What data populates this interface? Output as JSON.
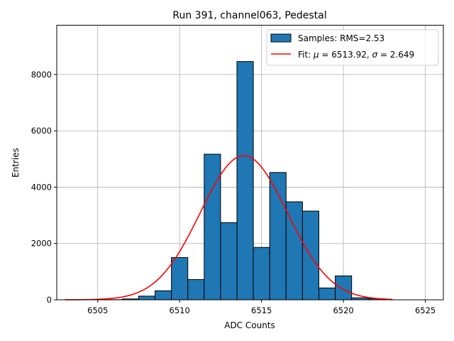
{
  "chart_data": {
    "type": "bar",
    "title": "Run 391, channel063, Pedestal",
    "xlabel": "ADC Counts",
    "ylabel": "Entries",
    "xlim": [
      6502.5,
      6526.1
    ],
    "ylim": [
      0,
      9750
    ],
    "xticks": [
      6505,
      6510,
      6515,
      6520,
      6525
    ],
    "yticks": [
      0,
      2000,
      4000,
      6000,
      8000
    ],
    "grid": true,
    "legend_position": "top-right",
    "series": [
      {
        "name": "Samples: RMS=2.53",
        "kind": "histogram",
        "color": "#1f77b4",
        "edgecolor": "#000000",
        "bin_width": 1,
        "bins": [
          {
            "x": 6506,
            "value": 5
          },
          {
            "x": 6507,
            "value": 30
          },
          {
            "x": 6508,
            "value": 130
          },
          {
            "x": 6509,
            "value": 320
          },
          {
            "x": 6510,
            "value": 1500
          },
          {
            "x": 6511,
            "value": 720
          },
          {
            "x": 6512,
            "value": 5170
          },
          {
            "x": 6513,
            "value": 2740
          },
          {
            "x": 6514,
            "value": 8460
          },
          {
            "x": 6515,
            "value": 1860
          },
          {
            "x": 6516,
            "value": 4520
          },
          {
            "x": 6517,
            "value": 3480
          },
          {
            "x": 6518,
            "value": 3150
          },
          {
            "x": 6519,
            "value": 420
          },
          {
            "x": 6520,
            "value": 850
          },
          {
            "x": 6521,
            "value": 70
          },
          {
            "x": 6522,
            "value": 40
          }
        ]
      },
      {
        "name": "Fit: μ = 6513.92, σ = 2.649",
        "legend_prefix": "Fit: ",
        "legend_mu_symbol": "μ",
        "legend_mu_value": " = 6513.92, ",
        "legend_sigma_symbol": "σ",
        "legend_sigma_value": " = 2.649",
        "kind": "gaussian_fit",
        "color": "#ff0000",
        "mu": 6513.92,
        "sigma": 2.649,
        "amplitude": 5120,
        "x_range": [
          6503,
          6523
        ]
      }
    ]
  }
}
